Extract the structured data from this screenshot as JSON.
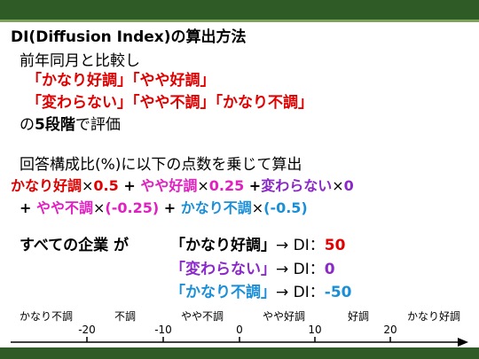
{
  "title": "DI(Diffusion Index)の算出方法",
  "intro": {
    "line1": "前年同月と比較し",
    "cat_very_good": "「かなり好調」",
    "cat_good": "「やや好調」",
    "cat_flat": "「変わらない」",
    "cat_bad": "「やや不調」",
    "cat_very_bad": "「かなり不調」",
    "line4_pre": "の",
    "line4_bold": "5段階",
    "line4_post": "で評価"
  },
  "formula": {
    "lead": "回答構成比(%)に以下の点数を乗じて算出",
    "very_good": "かなり好調",
    "times": "×",
    "v_very_good": "0.5",
    "plus1": " + ",
    "good": "やや好調",
    "v_good": "0.25",
    "plus2": " +",
    "flat": "変わらない",
    "v_flat": "0",
    "plus3": "+ ",
    "bad": "やや不調",
    "v_bad": "(-0.25)",
    "plus4": " + ",
    "very_bad": "かなり不調",
    "v_very_bad": "(-0.5)"
  },
  "summary": {
    "lead": "すべての企業 が",
    "rows": [
      {
        "label": "「かなり好調」",
        "arrow": "→ DI：",
        "value": "50"
      },
      {
        "label": "「変わらない」",
        "arrow": "→ DI：",
        "value": "0"
      },
      {
        "label": "「かなり不調」",
        "arrow": "→ DI：",
        "value": "-50"
      }
    ]
  },
  "scale": {
    "labels": [
      "かなり不調",
      "不調",
      "やや不調",
      "やや好調",
      "好調",
      "かなり好調"
    ],
    "ticks": [
      "-20",
      "-10",
      "0",
      "10",
      "20"
    ]
  },
  "colors": {
    "red": "#e00000",
    "magenta": "#e020c0",
    "purple": "#8a28c8",
    "blue": "#1a8fd8",
    "green_bar": "#2f5b26"
  }
}
